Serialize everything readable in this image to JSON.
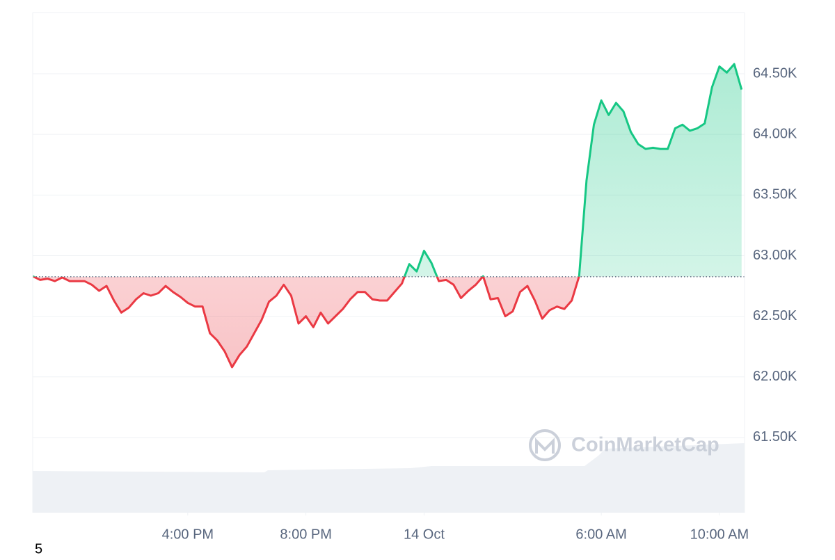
{
  "chart_data": {
    "type": "line",
    "watermark": "CoinMarketCap",
    "footnote": "5",
    "x": [
      -13.25,
      -13,
      -12.75,
      -12.5,
      -12.25,
      -12,
      -11.75,
      -11.5,
      -11.25,
      -11,
      -10.75,
      -10.5,
      -10.25,
      -10,
      -9.75,
      -9.5,
      -9.25,
      -9,
      -8.75,
      -8.5,
      -8.25,
      -8,
      -7.75,
      -7.5,
      -7.25,
      -7,
      -6.75,
      -6.5,
      -6.25,
      -6,
      -5.75,
      -5.5,
      -5.25,
      -5,
      -4.75,
      -4.5,
      -4.25,
      -4,
      -3.75,
      -3.5,
      -3.25,
      -3,
      -2.75,
      -2.5,
      -2.25,
      -2,
      -1.75,
      -1.5,
      -1.25,
      -1,
      -0.75,
      -0.5,
      -0.25,
      0,
      0.25,
      0.5,
      0.75,
      1,
      1.25,
      1.5,
      1.75,
      2,
      2.25,
      2.5,
      2.75,
      3,
      3.25,
      3.5,
      3.75,
      4,
      4.25,
      4.5,
      4.75,
      5,
      5.25,
      5.5,
      5.75,
      6,
      6.25,
      6.5,
      6.75,
      7,
      7.25,
      7.5,
      7.75,
      8,
      8.25,
      8.5,
      8.75,
      9,
      9.25,
      9.5,
      9.75,
      10,
      10.25,
      10.5,
      10.75
    ],
    "series": [
      {
        "values": [
          62830,
          62800,
          62810,
          62790,
          62820,
          62790,
          62790,
          62790,
          62760,
          62710,
          62750,
          62630,
          62530,
          62570,
          62640,
          62690,
          62670,
          62690,
          62750,
          62700,
          62660,
          62610,
          62580,
          62580,
          62360,
          62300,
          62210,
          62080,
          62180,
          62250,
          62360,
          62470,
          62620,
          62670,
          62760,
          62670,
          62440,
          62500,
          62410,
          62530,
          62440,
          62500,
          62560,
          62640,
          62700,
          62700,
          62640,
          62630,
          62630,
          62700,
          62770,
          62930,
          62870,
          63040,
          62940,
          62790,
          62800,
          62760,
          62650,
          62710,
          62760,
          62830,
          62640,
          62650,
          62500,
          62540,
          62700,
          62750,
          62630,
          62480,
          62550,
          62580,
          62560,
          62630,
          62830,
          63620,
          64080,
          64280,
          64160,
          64260,
          64190,
          64020,
          63920,
          63880,
          63890,
          63880,
          63880,
          64050,
          64080,
          64030,
          64050,
          64090,
          64390,
          64560,
          64510,
          64580,
          64370
        ]
      }
    ],
    "baseline": 62826,
    "up_color": "#16c784",
    "down_color": "#ea3943",
    "xlim": [
      -13.25,
      10.85
    ],
    "xticks": [
      {
        "value": -8,
        "label": "4:00 PM"
      },
      {
        "value": -4,
        "label": "8:00 PM"
      },
      {
        "value": 0,
        "label": "14 Oct"
      },
      {
        "value": 6,
        "label": "6:00 AM"
      },
      {
        "value": 10,
        "label": "10:00 AM"
      }
    ],
    "ylim": [
      60880,
      65005
    ],
    "yticks": [
      {
        "value": 61500,
        "label": "61.50K"
      },
      {
        "value": 62000,
        "label": "62.00K"
      },
      {
        "value": 62500,
        "label": "62.50K"
      },
      {
        "value": 63000,
        "label": "63.00K"
      },
      {
        "value": 63500,
        "label": "63.50K"
      },
      {
        "value": 64000,
        "label": "64.00K"
      },
      {
        "value": 64500,
        "label": "64.50K"
      }
    ],
    "grid": true
  }
}
